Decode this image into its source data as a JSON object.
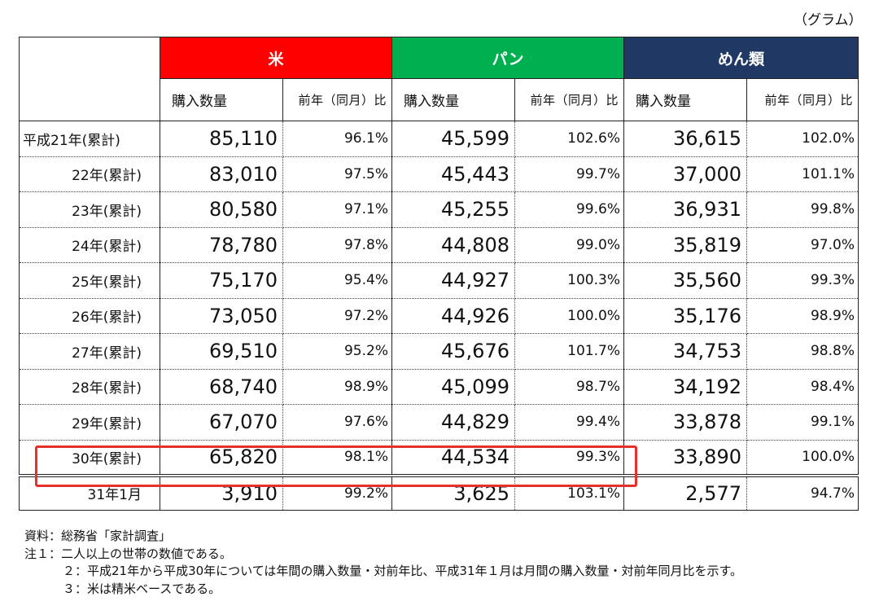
{
  "unit": "（グラム）",
  "categories": [
    {
      "label": "米",
      "color": "#ff0000"
    },
    {
      "label": "パン",
      "color": "#00b050"
    },
    {
      "label": "めん類",
      "color": "#1f3864"
    }
  ],
  "subheaders": {
    "qty": "購入数量",
    "ratio": "前年（同月）比"
  },
  "rows": [
    {
      "label": "平成21年(累計)",
      "values": [
        "85,110",
        "96.1%",
        "45,599",
        "102.6%",
        "36,615",
        "102.0%"
      ]
    },
    {
      "label": "22年(累計)",
      "values": [
        "83,010",
        "97.5%",
        "45,443",
        "99.7%",
        "37,000",
        "101.1%"
      ]
    },
    {
      "label": "23年(累計)",
      "values": [
        "80,580",
        "97.1%",
        "45,255",
        "99.6%",
        "36,931",
        "99.8%"
      ]
    },
    {
      "label": "24年(累計)",
      "values": [
        "78,780",
        "97.8%",
        "44,808",
        "99.0%",
        "35,819",
        "97.0%"
      ]
    },
    {
      "label": "25年(累計)",
      "values": [
        "75,170",
        "95.4%",
        "44,927",
        "100.3%",
        "35,560",
        "99.3%"
      ]
    },
    {
      "label": "26年(累計)",
      "values": [
        "73,050",
        "97.2%",
        "44,926",
        "100.0%",
        "35,176",
        "98.9%"
      ]
    },
    {
      "label": "27年(累計)",
      "values": [
        "69,510",
        "95.2%",
        "45,676",
        "101.7%",
        "34,753",
        "98.8%"
      ]
    },
    {
      "label": "28年(累計)",
      "values": [
        "68,740",
        "98.9%",
        "45,099",
        "98.7%",
        "34,192",
        "98.4%"
      ]
    },
    {
      "label": "29年(累計)",
      "values": [
        "67,070",
        "97.6%",
        "44,829",
        "99.4%",
        "33,878",
        "99.1%"
      ]
    },
    {
      "label": "30年(累計)",
      "values": [
        "65,820",
        "98.1%",
        "44,534",
        "99.3%",
        "33,890",
        "100.0%"
      ]
    },
    {
      "label": "31年1月",
      "values": [
        "3,910",
        "99.2%",
        "3,625",
        "103.1%",
        "2,577",
        "94.7%"
      ]
    }
  ],
  "notes": [
    "資料：総務省「家計調査」",
    "注１：二人以上の世帯の数値である。",
    "２：平成21年から平成30年については年間の購入数量・対前年比、平成31年１月は月間の購入数量・対前年同月比を示す。",
    "３：米は精米ベースである。"
  ],
  "highlight_color": "#e8302b"
}
